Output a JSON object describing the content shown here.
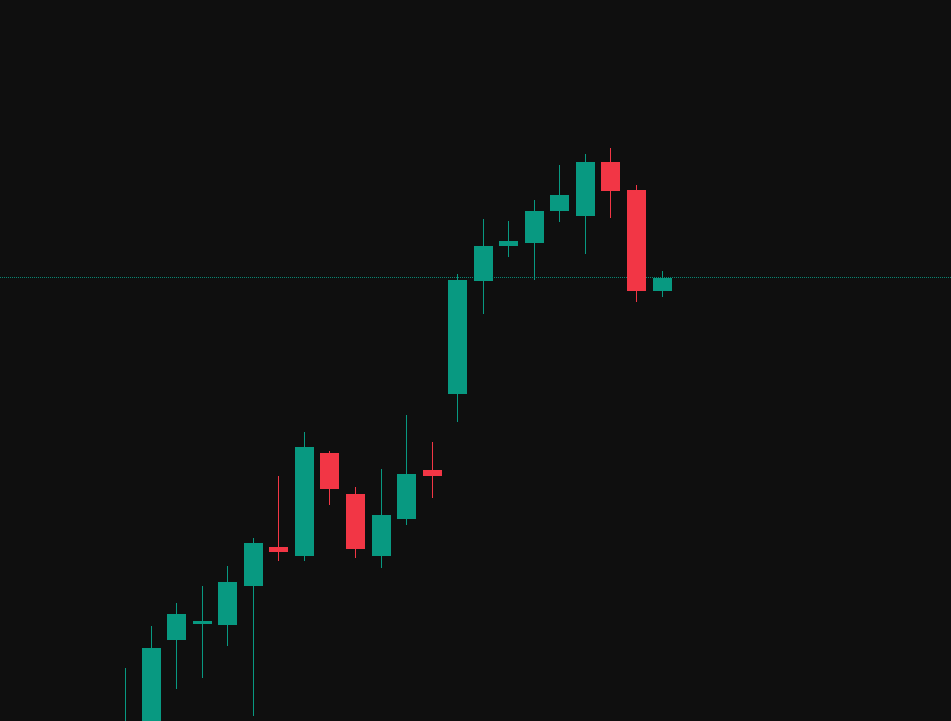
{
  "theme": {
    "background": "#0f0f0f",
    "up_color": "#089981",
    "down_color": "#f23645",
    "price_line_color": "#089981"
  },
  "chart_data": {
    "type": "candlestick",
    "title": "",
    "xlabel": "",
    "ylabel": "",
    "ylim": [
      0,
      721
    ],
    "grid": false,
    "price_line": {
      "value": 444,
      "style": "dotted"
    },
    "candles": [
      {
        "open": -10,
        "high": 53,
        "low": -10,
        "close": -5
      },
      {
        "open": 0,
        "high": 95,
        "low": 0,
        "close": 73
      },
      {
        "open": 81,
        "high": 118,
        "low": 32,
        "close": 107
      },
      {
        "open": 98,
        "high": 135,
        "low": 43,
        "close": 100
      },
      {
        "open": 96,
        "high": 155,
        "low": 75,
        "close": 139
      },
      {
        "open": 135,
        "high": 183,
        "low": 5,
        "close": 178
      },
      {
        "open": 174,
        "high": 245,
        "low": 160,
        "close": 169
      },
      {
        "open": 165,
        "high": 289,
        "low": 160,
        "close": 274
      },
      {
        "open": 268,
        "high": 270,
        "low": 216,
        "close": 232
      },
      {
        "open": 227,
        "high": 234,
        "low": 163,
        "close": 172
      },
      {
        "open": 165,
        "high": 252,
        "low": 153,
        "close": 206
      },
      {
        "open": 202,
        "high": 306,
        "low": 196,
        "close": 247
      },
      {
        "open": 251,
        "high": 279,
        "low": 223,
        "close": 245
      },
      {
        "open": 327,
        "high": 447,
        "low": 299,
        "close": 441
      },
      {
        "open": 440,
        "high": 502,
        "low": 407,
        "close": 475
      },
      {
        "open": 475,
        "high": 500,
        "low": 464,
        "close": 480
      },
      {
        "open": 478,
        "high": 521,
        "low": 441,
        "close": 510
      },
      {
        "open": 510,
        "high": 556,
        "low": 499,
        "close": 526
      },
      {
        "open": 505,
        "high": 567,
        "low": 467,
        "close": 559
      },
      {
        "open": 559,
        "high": 573,
        "low": 503,
        "close": 530
      },
      {
        "open": 531,
        "high": 536,
        "low": 419,
        "close": 430
      },
      {
        "open": 430,
        "high": 450,
        "low": 424,
        "close": 443
      }
    ]
  }
}
